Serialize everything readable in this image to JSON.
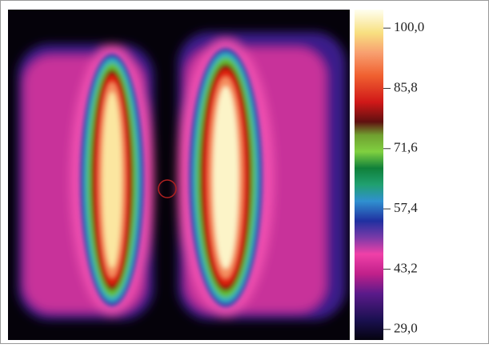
{
  "colorbar": {
    "lim": [
      26.5,
      103.8
    ],
    "ticks": [
      {
        "value": 100,
        "label": "100,0"
      },
      {
        "value": 85.8,
        "label": "85,8"
      },
      {
        "value": 71.6,
        "label": "71,6"
      },
      {
        "value": 57.4,
        "label": "57,4"
      },
      {
        "value": 43.2,
        "label": "43,2"
      },
      {
        "value": 29,
        "label": "29,0"
      }
    ]
  }
}
